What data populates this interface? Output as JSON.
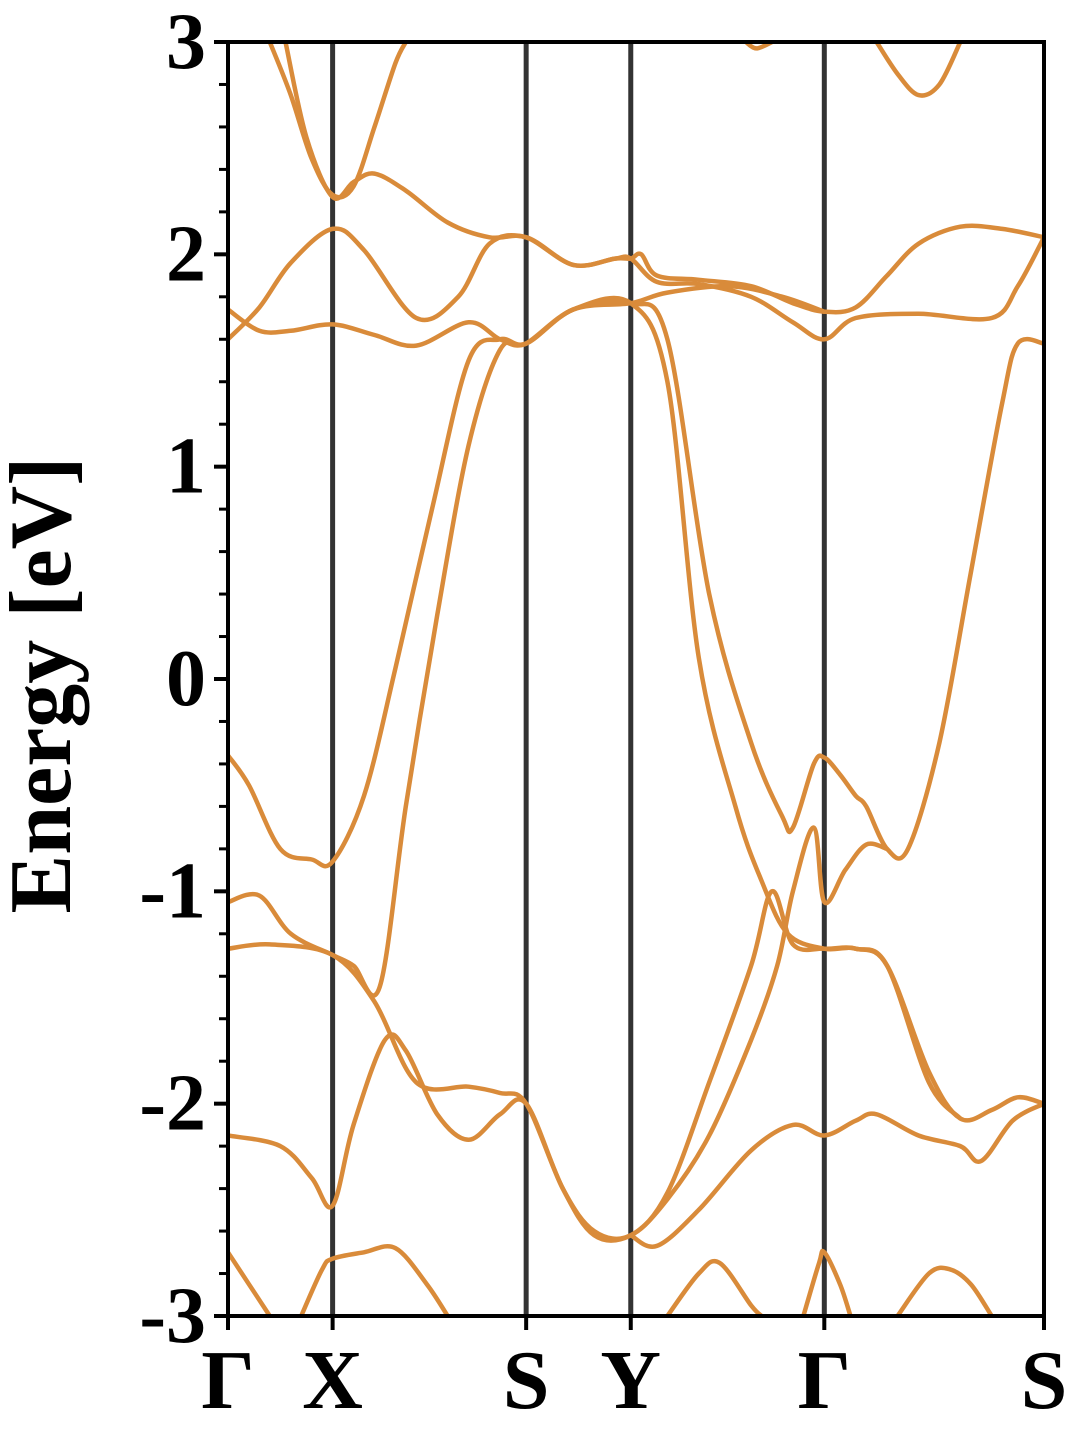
{
  "chart_data": {
    "type": "line",
    "title": "",
    "xlabel": "",
    "ylabel": "Energy [eV]",
    "ylim": [
      -3,
      3
    ],
    "xlim": [
      0,
      7.8
    ],
    "grid": false,
    "legend": "none",
    "line_color": "#D98B3A",
    "kpath_line_color": "#333333",
    "yticks": [
      -3,
      -2,
      -1,
      0,
      1,
      2,
      3
    ],
    "ytick_labels": [
      "-3",
      "-2",
      "-1",
      "0",
      "1",
      "2",
      "3"
    ],
    "kpoints": [
      {
        "label": "Γ",
        "x": 0.0
      },
      {
        "label": "X",
        "x": 1.0
      },
      {
        "label": "S",
        "x": 2.85
      },
      {
        "label": "Y",
        "x": 3.85
      },
      {
        "label": "Γ",
        "x": 5.7
      },
      {
        "label": "S",
        "x": 7.8
      }
    ],
    "series": [
      {
        "values": [
          [
            0.4,
            3.0
          ],
          [
            0.6,
            2.75
          ],
          [
            0.8,
            2.45
          ],
          [
            1.0,
            2.28
          ],
          [
            1.2,
            2.32
          ],
          [
            1.4,
            2.6
          ],
          [
            1.6,
            2.9
          ],
          [
            1.7,
            3.0
          ]
        ]
      },
      {
        "values": [
          [
            0.55,
            3.0
          ],
          [
            0.75,
            2.55
          ],
          [
            1.0,
            2.27
          ],
          [
            1.2,
            2.34
          ],
          [
            1.4,
            2.38
          ],
          [
            1.7,
            2.3
          ],
          [
            2.1,
            2.15
          ],
          [
            2.5,
            2.08
          ],
          [
            2.85,
            2.08
          ],
          [
            3.3,
            1.95
          ],
          [
            3.7,
            1.98
          ],
          [
            3.85,
            1.98
          ],
          [
            3.95,
            2.0
          ],
          [
            4.1,
            1.9
          ],
          [
            4.5,
            1.88
          ],
          [
            5.0,
            1.85
          ],
          [
            5.4,
            1.77
          ],
          [
            5.7,
            1.73
          ],
          [
            6.0,
            1.75
          ],
          [
            6.3,
            1.9
          ],
          [
            6.6,
            2.05
          ],
          [
            7.0,
            2.13
          ],
          [
            7.4,
            2.12
          ],
          [
            7.8,
            2.08
          ]
        ]
      },
      {
        "values": [
          [
            0.0,
            1.6
          ],
          [
            0.3,
            1.75
          ],
          [
            0.6,
            1.96
          ],
          [
            1.0,
            2.12
          ],
          [
            1.3,
            2.02
          ],
          [
            1.8,
            1.7
          ],
          [
            2.2,
            1.8
          ],
          [
            2.5,
            2.05
          ],
          [
            2.85,
            2.08
          ],
          [
            3.3,
            1.95
          ],
          [
            3.7,
            1.98
          ],
          [
            3.85,
            1.98
          ],
          [
            4.1,
            1.87
          ],
          [
            4.5,
            1.86
          ],
          [
            5.0,
            1.8
          ],
          [
            5.4,
            1.68
          ],
          [
            5.7,
            1.6
          ],
          [
            6.0,
            1.7
          ],
          [
            6.6,
            1.72
          ],
          [
            7.3,
            1.7
          ],
          [
            7.55,
            1.85
          ],
          [
            7.8,
            2.08
          ]
        ]
      },
      {
        "values": [
          [
            0.0,
            1.74
          ],
          [
            0.3,
            1.64
          ],
          [
            0.6,
            1.64
          ],
          [
            1.0,
            1.67
          ],
          [
            1.4,
            1.62
          ],
          [
            1.8,
            1.57
          ],
          [
            2.3,
            1.68
          ],
          [
            2.6,
            1.6
          ],
          [
            2.85,
            1.58
          ],
          [
            3.3,
            1.74
          ],
          [
            3.85,
            1.77
          ],
          [
            4.2,
            1.82
          ],
          [
            4.8,
            1.85
          ],
          [
            5.3,
            1.8
          ],
          [
            5.7,
            1.73
          ]
        ]
      },
      {
        "values": [
          [
            0.0,
            -0.36
          ],
          [
            0.2,
            -0.5
          ],
          [
            0.5,
            -0.8
          ],
          [
            0.8,
            -0.85
          ],
          [
            1.0,
            -0.86
          ],
          [
            1.3,
            -0.55
          ],
          [
            1.6,
            0.05
          ],
          [
            1.95,
            0.8
          ],
          [
            2.3,
            1.5
          ],
          [
            2.6,
            1.6
          ],
          [
            2.85,
            1.58
          ],
          [
            3.3,
            1.74
          ],
          [
            3.85,
            1.77
          ],
          [
            4.2,
            1.4
          ],
          [
            4.5,
            0.1
          ],
          [
            4.85,
            -0.6
          ],
          [
            5.1,
            -0.95
          ],
          [
            5.35,
            -1.2
          ],
          [
            5.7,
            -1.27
          ],
          [
            6.0,
            -1.27
          ],
          [
            6.3,
            -1.35
          ],
          [
            6.7,
            -1.85
          ],
          [
            7.0,
            -2.07
          ],
          [
            7.3,
            -2.03
          ],
          [
            7.55,
            -1.97
          ],
          [
            7.8,
            -2.0
          ]
        ]
      },
      {
        "values": [
          [
            0.0,
            -1.05
          ],
          [
            0.3,
            -1.02
          ],
          [
            0.6,
            -1.2
          ],
          [
            1.0,
            -1.3
          ],
          [
            1.2,
            -1.35
          ],
          [
            1.45,
            -1.45
          ],
          [
            1.7,
            -0.6
          ],
          [
            2.0,
            0.3
          ],
          [
            2.3,
            1.1
          ],
          [
            2.6,
            1.55
          ],
          [
            2.85,
            1.58
          ],
          [
            3.3,
            1.74
          ],
          [
            3.85,
            1.77
          ],
          [
            4.2,
            1.6
          ],
          [
            4.6,
            0.4
          ],
          [
            5.0,
            -0.3
          ],
          [
            5.3,
            -0.65
          ],
          [
            5.4,
            -0.7
          ],
          [
            5.6,
            -0.4
          ],
          [
            5.7,
            -0.37
          ],
          [
            5.85,
            -0.45
          ],
          [
            6.0,
            -0.55
          ],
          [
            6.1,
            -0.6
          ],
          [
            6.3,
            -0.8
          ],
          [
            6.5,
            -0.8
          ],
          [
            6.8,
            -0.3
          ],
          [
            7.1,
            0.5
          ],
          [
            7.4,
            1.3
          ],
          [
            7.55,
            1.58
          ],
          [
            7.8,
            1.58
          ]
        ]
      },
      {
        "values": [
          [
            0.0,
            -1.27
          ],
          [
            0.4,
            -1.25
          ],
          [
            1.0,
            -1.3
          ],
          [
            1.4,
            -1.52
          ],
          [
            1.8,
            -1.9
          ],
          [
            2.3,
            -1.92
          ],
          [
            2.6,
            -1.95
          ],
          [
            2.85,
            -2.0
          ],
          [
            3.2,
            -2.4
          ],
          [
            3.5,
            -2.62
          ],
          [
            3.85,
            -2.62
          ],
          [
            4.2,
            -2.45
          ],
          [
            4.6,
            -2.15
          ],
          [
            5.0,
            -1.7
          ],
          [
            5.25,
            -1.35
          ],
          [
            5.4,
            -1.0
          ],
          [
            5.6,
            -0.7
          ],
          [
            5.7,
            -1.05
          ],
          [
            5.9,
            -0.9
          ],
          [
            6.1,
            -0.78
          ],
          [
            6.3,
            -0.8
          ]
        ]
      },
      {
        "values": [
          [
            0.0,
            -2.15
          ],
          [
            0.5,
            -2.2
          ],
          [
            0.8,
            -2.35
          ],
          [
            1.0,
            -2.48
          ],
          [
            1.2,
            -2.1
          ],
          [
            1.5,
            -1.7
          ],
          [
            1.7,
            -1.75
          ],
          [
            2.0,
            -2.05
          ],
          [
            2.3,
            -2.17
          ],
          [
            2.6,
            -2.05
          ],
          [
            2.85,
            -2.0
          ],
          [
            3.2,
            -2.4
          ],
          [
            3.5,
            -2.6
          ],
          [
            3.85,
            -2.62
          ],
          [
            4.2,
            -2.42
          ],
          [
            4.6,
            -1.9
          ],
          [
            5.0,
            -1.35
          ],
          [
            5.2,
            -1.0
          ],
          [
            5.4,
            -1.25
          ],
          [
            5.7,
            -1.27
          ],
          [
            6.0,
            -1.27
          ],
          [
            6.3,
            -1.35
          ],
          [
            6.7,
            -1.9
          ],
          [
            7.0,
            -2.07
          ]
        ]
      },
      {
        "values": [
          [
            3.85,
            -2.62
          ],
          [
            4.1,
            -2.67
          ],
          [
            4.5,
            -2.5
          ],
          [
            5.0,
            -2.22
          ],
          [
            5.4,
            -2.1
          ],
          [
            5.7,
            -2.15
          ],
          [
            6.0,
            -2.08
          ],
          [
            6.2,
            -2.05
          ],
          [
            6.6,
            -2.15
          ],
          [
            7.0,
            -2.2
          ],
          [
            7.2,
            -2.27
          ],
          [
            7.5,
            -2.08
          ],
          [
            7.8,
            -2.0
          ]
        ]
      },
      {
        "values": [
          [
            0.0,
            -2.7
          ],
          [
            0.2,
            -2.85
          ],
          [
            0.4,
            -3.0
          ]
        ]
      },
      {
        "values": [
          [
            0.7,
            -3.0
          ],
          [
            0.9,
            -2.78
          ],
          [
            1.0,
            -2.73
          ],
          [
            1.3,
            -2.7
          ],
          [
            1.6,
            -2.68
          ],
          [
            1.9,
            -2.85
          ],
          [
            2.1,
            -3.0
          ]
        ]
      },
      {
        "values": [
          [
            4.2,
            -3.0
          ],
          [
            4.5,
            -2.8
          ],
          [
            4.7,
            -2.75
          ],
          [
            5.0,
            -2.95
          ],
          [
            5.1,
            -3.0
          ]
        ]
      },
      {
        "values": [
          [
            5.5,
            -3.0
          ],
          [
            5.65,
            -2.75
          ],
          [
            5.7,
            -2.7
          ],
          [
            5.85,
            -2.85
          ],
          [
            5.95,
            -3.0
          ]
        ]
      },
      {
        "values": [
          [
            6.4,
            -3.0
          ],
          [
            6.7,
            -2.8
          ],
          [
            6.9,
            -2.78
          ],
          [
            7.1,
            -2.85
          ],
          [
            7.3,
            -3.0
          ]
        ]
      },
      {
        "values": [
          [
            4.95,
            3.0
          ],
          [
            5.05,
            2.97
          ],
          [
            5.2,
            3.0
          ]
        ]
      },
      {
        "values": [
          [
            6.2,
            3.0
          ],
          [
            6.4,
            2.85
          ],
          [
            6.6,
            2.75
          ],
          [
            6.8,
            2.8
          ],
          [
            7.0,
            3.0
          ]
        ]
      }
    ]
  }
}
